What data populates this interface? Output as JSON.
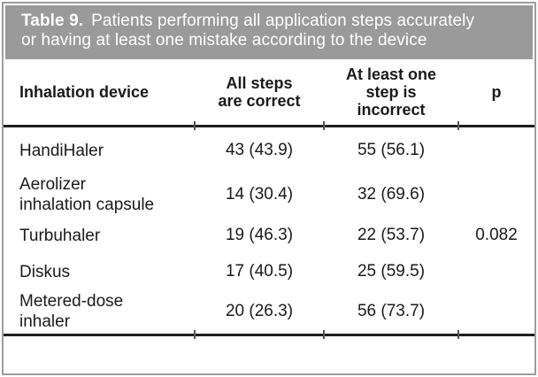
{
  "figure": {
    "title": {
      "label": "Table 9.",
      "line1": "Patients performing all application steps accurately",
      "line2": "or having at least one mistake according to the device"
    }
  },
  "table": {
    "headers": {
      "device": "Inhalation device",
      "correct": "All steps\nare correct",
      "incorrect": "At least one\nstep is\nincorrect",
      "p": "p"
    },
    "rows": [
      {
        "device": "HandiHaler",
        "correct": "43 (43.9)",
        "incorrect": "55 (56.1)",
        "p": ""
      },
      {
        "device": "Aerolizer\ninhalation capsule",
        "correct": "14 (30.4)",
        "incorrect": "32 (69.6)",
        "p": ""
      },
      {
        "device": "Turbuhaler",
        "correct": "19 (46.3)",
        "incorrect": "22 (53.7)",
        "p": "0.082"
      },
      {
        "device": "Diskus",
        "correct": "17 (40.5)",
        "incorrect": "25 (59.5)",
        "p": ""
      },
      {
        "device": "Metered-dose\ninhaler",
        "correct": "20 (26.3)",
        "incorrect": "56 (73.7)",
        "p": ""
      }
    ]
  },
  "colors": {
    "band_gray": "#9a9a9a",
    "border_gray": "#9c9c9c",
    "rule_black": "#1e1e1e",
    "text": "#1a1a1a",
    "title_text": "#ffffff"
  }
}
